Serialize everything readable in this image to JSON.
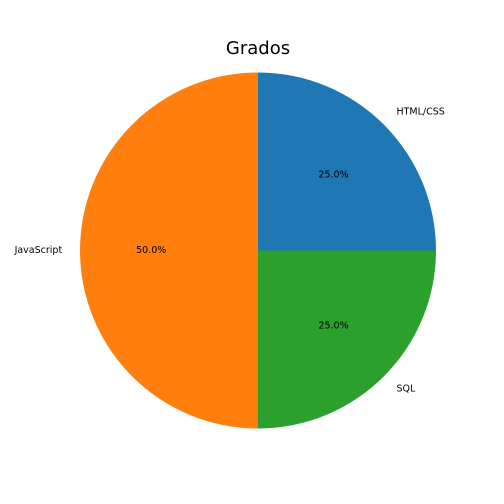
{
  "chart_data": {
    "type": "pie",
    "title": "Grados",
    "slices": [
      {
        "label": "HTML/CSS",
        "value": 25.0,
        "pct_label": "25.0%",
        "color": "#1f77b4"
      },
      {
        "label": "JavaScript",
        "value": 50.0,
        "pct_label": "50.0%",
        "color": "#ff7f0e"
      },
      {
        "label": "SQL",
        "value": 25.0,
        "pct_label": "25.0%",
        "color": "#2ca02c"
      }
    ],
    "start_angle_deg": 0,
    "direction": "counterclockwise",
    "legend": "none"
  }
}
